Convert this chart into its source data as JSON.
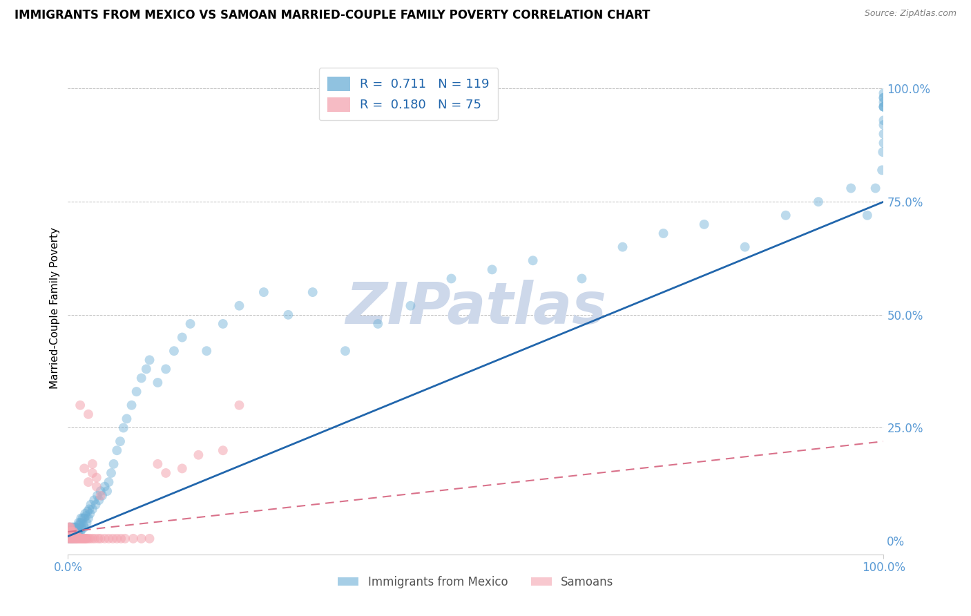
{
  "title": "IMMIGRANTS FROM MEXICO VS SAMOAN MARRIED-COUPLE FAMILY POVERTY CORRELATION CHART",
  "source": "Source: ZipAtlas.com",
  "ylabel": "Married-Couple Family Poverty",
  "ytick_values": [
    0.0,
    0.25,
    0.5,
    0.75,
    1.0
  ],
  "ytick_labels": [
    "0%",
    "25.0%",
    "50.0%",
    "75.0%",
    "100.0%"
  ],
  "xlim": [
    0.0,
    1.0
  ],
  "ylim": [
    -0.03,
    1.06
  ],
  "legend1_R1": "0.711",
  "legend1_N1": "119",
  "legend1_R2": "0.180",
  "legend1_N2": "75",
  "blue_color": "#6baed6",
  "pink_color": "#f4a4b0",
  "blue_line_color": "#2166ac",
  "pink_line_color": "#d9718a",
  "blue_scatter_alpha": 0.45,
  "pink_scatter_alpha": 0.55,
  "scatter_size": 100,
  "watermark": "ZIPatlas",
  "watermark_color": "#cdd8ea",
  "title_fontsize": 12,
  "tick_color": "#5b9bd5",
  "grid_color": "#bbbbbb",
  "blue_x": [
    0.001,
    0.001,
    0.001,
    0.002,
    0.002,
    0.002,
    0.002,
    0.003,
    0.003,
    0.003,
    0.004,
    0.004,
    0.004,
    0.005,
    0.005,
    0.005,
    0.005,
    0.006,
    0.006,
    0.006,
    0.007,
    0.007,
    0.007,
    0.008,
    0.008,
    0.008,
    0.009,
    0.009,
    0.009,
    0.01,
    0.01,
    0.01,
    0.011,
    0.011,
    0.012,
    0.012,
    0.013,
    0.013,
    0.014,
    0.014,
    0.015,
    0.015,
    0.016,
    0.016,
    0.017,
    0.017,
    0.018,
    0.019,
    0.02,
    0.02,
    0.021,
    0.022,
    0.023,
    0.024,
    0.025,
    0.026,
    0.027,
    0.028,
    0.03,
    0.032,
    0.034,
    0.036,
    0.038,
    0.04,
    0.042,
    0.045,
    0.048,
    0.05,
    0.053,
    0.056,
    0.06,
    0.064,
    0.068,
    0.072,
    0.078,
    0.084,
    0.09,
    0.096,
    0.1,
    0.11,
    0.12,
    0.13,
    0.14,
    0.15,
    0.17,
    0.19,
    0.21,
    0.24,
    0.27,
    0.3,
    0.34,
    0.38,
    0.42,
    0.47,
    0.52,
    0.57,
    0.63,
    0.68,
    0.73,
    0.78,
    0.83,
    0.88,
    0.92,
    0.96,
    0.98,
    0.99,
    0.998,
    0.999,
    1.0,
    1.0,
    1.0,
    1.0,
    1.0,
    1.0,
    1.0,
    1.0,
    1.0,
    1.0,
    1.0
  ],
  "blue_y": [
    0.02,
    0.005,
    0.01,
    0.01,
    0.02,
    0.005,
    0.03,
    0.01,
    0.02,
    0.005,
    0.015,
    0.025,
    0.005,
    0.01,
    0.02,
    0.03,
    0.005,
    0.015,
    0.025,
    0.005,
    0.01,
    0.02,
    0.03,
    0.015,
    0.025,
    0.005,
    0.01,
    0.02,
    0.03,
    0.015,
    0.025,
    0.005,
    0.02,
    0.03,
    0.015,
    0.025,
    0.02,
    0.04,
    0.025,
    0.035,
    0.02,
    0.04,
    0.03,
    0.05,
    0.025,
    0.04,
    0.05,
    0.035,
    0.05,
    0.03,
    0.06,
    0.055,
    0.04,
    0.065,
    0.05,
    0.07,
    0.06,
    0.08,
    0.07,
    0.09,
    0.08,
    0.1,
    0.09,
    0.11,
    0.1,
    0.12,
    0.11,
    0.13,
    0.15,
    0.17,
    0.2,
    0.22,
    0.25,
    0.27,
    0.3,
    0.33,
    0.36,
    0.38,
    0.4,
    0.35,
    0.38,
    0.42,
    0.45,
    0.48,
    0.42,
    0.48,
    0.52,
    0.55,
    0.5,
    0.55,
    0.42,
    0.48,
    0.52,
    0.58,
    0.6,
    0.62,
    0.58,
    0.65,
    0.68,
    0.7,
    0.65,
    0.72,
    0.75,
    0.78,
    0.72,
    0.78,
    0.82,
    0.86,
    0.9,
    0.93,
    0.96,
    0.98,
    0.96,
    0.88,
    0.92,
    0.96,
    0.97,
    0.98,
    0.99
  ],
  "pink_x": [
    0.001,
    0.001,
    0.001,
    0.001,
    0.002,
    0.002,
    0.002,
    0.002,
    0.003,
    0.003,
    0.003,
    0.003,
    0.004,
    0.004,
    0.004,
    0.005,
    0.005,
    0.005,
    0.006,
    0.006,
    0.006,
    0.007,
    0.007,
    0.007,
    0.008,
    0.008,
    0.009,
    0.009,
    0.01,
    0.01,
    0.011,
    0.011,
    0.012,
    0.012,
    0.013,
    0.014,
    0.015,
    0.016,
    0.017,
    0.018,
    0.019,
    0.02,
    0.021,
    0.022,
    0.023,
    0.025,
    0.027,
    0.03,
    0.033,
    0.037,
    0.04,
    0.045,
    0.05,
    0.055,
    0.06,
    0.065,
    0.07,
    0.08,
    0.09,
    0.1,
    0.11,
    0.12,
    0.14,
    0.16,
    0.19,
    0.21,
    0.025,
    0.03,
    0.035,
    0.04,
    0.015,
    0.02,
    0.025,
    0.03,
    0.035
  ],
  "pink_y": [
    0.005,
    0.01,
    0.02,
    0.03,
    0.005,
    0.01,
    0.02,
    0.03,
    0.005,
    0.01,
    0.02,
    0.03,
    0.005,
    0.01,
    0.02,
    0.005,
    0.01,
    0.02,
    0.005,
    0.01,
    0.02,
    0.005,
    0.01,
    0.02,
    0.005,
    0.01,
    0.005,
    0.01,
    0.005,
    0.01,
    0.005,
    0.01,
    0.005,
    0.01,
    0.005,
    0.005,
    0.005,
    0.005,
    0.005,
    0.005,
    0.005,
    0.005,
    0.005,
    0.005,
    0.005,
    0.005,
    0.005,
    0.005,
    0.005,
    0.005,
    0.005,
    0.005,
    0.005,
    0.005,
    0.005,
    0.005,
    0.005,
    0.005,
    0.005,
    0.005,
    0.17,
    0.15,
    0.16,
    0.19,
    0.2,
    0.3,
    0.28,
    0.17,
    0.14,
    0.1,
    0.3,
    0.16,
    0.13,
    0.15,
    0.12
  ]
}
